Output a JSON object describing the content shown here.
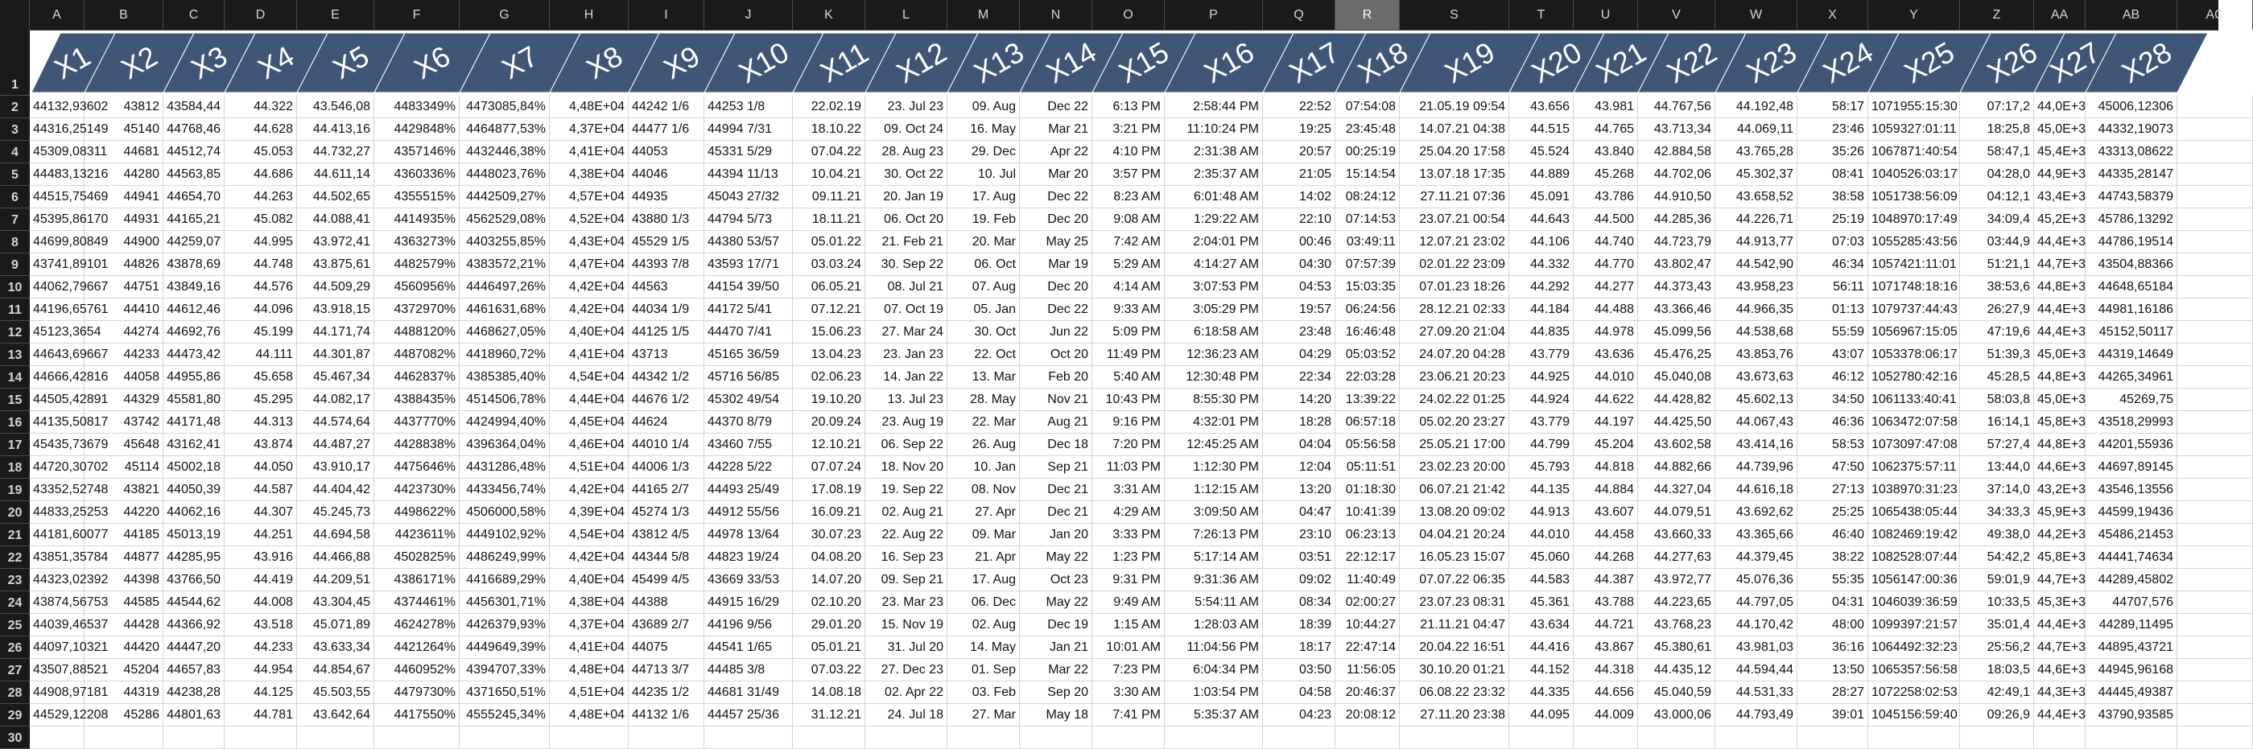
{
  "columns": [
    "A",
    "B",
    "C",
    "D",
    "E",
    "F",
    "G",
    "H",
    "I",
    "J",
    "K",
    "L",
    "M",
    "N",
    "O",
    "P",
    "Q",
    "R",
    "S",
    "T",
    "U",
    "V",
    "W",
    "X",
    "Y",
    "Z",
    "AA",
    "AB",
    "AC"
  ],
  "selected_column": "R",
  "row_numbers": [
    "1",
    "2",
    "3",
    "4",
    "5",
    "6",
    "7",
    "8",
    "9",
    "10",
    "11",
    "12",
    "13",
    "14",
    "15",
    "16",
    "17",
    "18",
    "19",
    "20",
    "21",
    "22",
    "23",
    "24",
    "25",
    "26",
    "27",
    "28",
    "29",
    "30"
  ],
  "header_labels": [
    "X1",
    "X2",
    "X3",
    "X4",
    "X5",
    "X6",
    "X7",
    "X8",
    "X9",
    "X10",
    "X11",
    "X12",
    "X13",
    "X14",
    "X15",
    "X16",
    "X17",
    "X18",
    "X19",
    "X20",
    "X21",
    "X22",
    "X23",
    "X24",
    "X25",
    "X26",
    "X27",
    "X28"
  ],
  "header_color": "#3f5677",
  "rows": [
    [
      "44132,93602",
      "43812",
      "43584,44",
      "44.322",
      "43.546,08",
      "4483349%",
      "4473085,84%",
      "4,48E+04",
      "44242 1/6",
      "44253 1/8",
      "22.02.19",
      "23. Jul 23",
      "09. Aug",
      "Dec 22",
      "6:13 PM",
      "2:58:44 PM",
      "22:52",
      "07:54:08",
      "21.05.19 09:54",
      "43.656",
      "43.981",
      "44.767,56",
      "44.192,48",
      "58:17",
      "1071955:15:30",
      "07:17,2",
      "44,0E+3",
      "45006,12306"
    ],
    [
      "44316,25149",
      "45140",
      "44768,46",
      "44.628",
      "44.413,16",
      "4429848%",
      "4464877,53%",
      "4,37E+04",
      "44477 1/6",
      "44994 7/31",
      "18.10.22",
      "09. Oct 24",
      "16. May",
      "Mar 21",
      "3:21 PM",
      "11:10:24 PM",
      "19:25",
      "23:45:48",
      "14.07.21 04:38",
      "44.515",
      "44.765",
      "43.713,34",
      "44.069,11",
      "23:46",
      "1059327:01:11",
      "18:25,8",
      "45,0E+3",
      "44332,19073"
    ],
    [
      "45309,08311",
      "44681",
      "44512,74",
      "45.053",
      "44.732,27",
      "4357146%",
      "4432446,38%",
      "4,41E+04",
      "44053",
      "45331 5/29",
      "07.04.22",
      "28. Aug 23",
      "29. Dec",
      "Apr 22",
      "4:10 PM",
      "2:31:38 AM",
      "20:57",
      "00:25:19",
      "25.04.20 17:58",
      "45.524",
      "43.840",
      "42.884,58",
      "43.765,28",
      "35:26",
      "1067871:40:54",
      "58:47,1",
      "45,4E+3",
      "43313,08622"
    ],
    [
      "44483,13216",
      "44280",
      "44563,85",
      "44.686",
      "44.611,14",
      "4360336%",
      "4448023,76%",
      "4,38E+04",
      "44046",
      "44394 11/13",
      "10.04.21",
      "30. Oct 22",
      "10. Jul",
      "Mar 20",
      "3:57 PM",
      "2:35:37 AM",
      "21:05",
      "15:14:54",
      "13.07.18 17:35",
      "44.889",
      "45.268",
      "44.702,06",
      "45.302,37",
      "08:41",
      "1040526:03:17",
      "04:28,0",
      "44,9E+3",
      "44335,28147"
    ],
    [
      "44515,75469",
      "44941",
      "44654,70",
      "44.263",
      "44.502,65",
      "4355515%",
      "4442509,27%",
      "4,57E+04",
      "44935",
      "45043 27/32",
      "09.11.21",
      "20. Jan 19",
      "17. Aug",
      "Dec 22",
      "8:23 AM",
      "6:01:48 AM",
      "14:02",
      "08:24:12",
      "27.11.21 07:36",
      "45.091",
      "43.786",
      "44.910,50",
      "43.658,52",
      "38:58",
      "1051738:56:09",
      "04:12,1",
      "43,4E+3",
      "44743,58379"
    ],
    [
      "45395,86170",
      "44931",
      "44165,21",
      "45.082",
      "44.088,41",
      "4414935%",
      "4562529,08%",
      "4,52E+04",
      "43880 1/3",
      "44794 5/73",
      "18.11.21",
      "06. Oct 20",
      "19. Feb",
      "Dec 20",
      "9:08 AM",
      "1:29:22 AM",
      "22:10",
      "07:14:53",
      "23.07.21 00:54",
      "44.643",
      "44.500",
      "44.285,36",
      "44.226,71",
      "25:19",
      "1048970:17:49",
      "34:09,4",
      "45,2E+3",
      "45786,13292"
    ],
    [
      "44699,80849",
      "44900",
      "44259,07",
      "44.995",
      "43.972,41",
      "4363273%",
      "4403255,85%",
      "4,43E+04",
      "45529 1/5",
      "44380 53/57",
      "05.01.22",
      "21. Feb 21",
      "20. Mar",
      "May 25",
      "7:42 AM",
      "2:04:01 PM",
      "00:46",
      "03:49:11",
      "12.07.21 23:02",
      "44.106",
      "44.740",
      "44.723,79",
      "44.913,77",
      "07:03",
      "1055285:43:56",
      "03:44,9",
      "44,4E+3",
      "44786,19514"
    ],
    [
      "43741,89101",
      "44826",
      "43878,69",
      "44.748",
      "43.875,61",
      "4482579%",
      "4383572,21%",
      "4,47E+04",
      "44393 7/8",
      "43593 17/71",
      "03.03.24",
      "30. Sep 22",
      "06. Oct",
      "Mar 19",
      "5:29 AM",
      "4:14:27 AM",
      "04:30",
      "07:57:39",
      "02.01.22 23:09",
      "44.332",
      "44.770",
      "43.802,47",
      "44.542,90",
      "46:34",
      "1057421:11:01",
      "51:21,1",
      "44,7E+3",
      "43504,88366"
    ],
    [
      "44062,79667",
      "44751",
      "43849,16",
      "44.576",
      "44.509,29",
      "4560956%",
      "4446497,26%",
      "4,42E+04",
      "44563",
      "44154 39/50",
      "06.05.21",
      "08. Jul 21",
      "07. Aug",
      "Dec 20",
      "4:14 AM",
      "3:07:53 PM",
      "04:53",
      "15:03:35",
      "07.01.23 18:26",
      "44.292",
      "44.277",
      "44.373,43",
      "43.958,23",
      "56:11",
      "1071748:18:16",
      "38:53,6",
      "44,8E+3",
      "44648,65184"
    ],
    [
      "44196,65761",
      "44410",
      "44612,46",
      "44.096",
      "43.918,15",
      "4372970%",
      "4461631,68%",
      "4,42E+04",
      "44034 1/9",
      "44172 5/41",
      "07.12.21",
      "07. Oct 19",
      "05. Jan",
      "Dec 22",
      "9:33 AM",
      "3:05:29 PM",
      "19:57",
      "06:24:56",
      "28.12.21 02:33",
      "44.184",
      "44.488",
      "43.366,46",
      "44.966,35",
      "01:13",
      "1079737:44:43",
      "26:27,9",
      "44,4E+3",
      "44981,16186"
    ],
    [
      "45123,3654",
      "44274",
      "44692,76",
      "45.199",
      "44.171,74",
      "4488120%",
      "4468627,05%",
      "4,40E+04",
      "44125 1/5",
      "44470 7/41",
      "15.06.23",
      "27. Mar 24",
      "30. Oct",
      "Jun 22",
      "5:09 PM",
      "6:18:58 AM",
      "23:48",
      "16:46:48",
      "27.09.20 21:04",
      "44.835",
      "44.978",
      "45.099,56",
      "44.538,68",
      "55:59",
      "1056967:15:05",
      "47:19,6",
      "44,4E+3",
      "45152,50117"
    ],
    [
      "44643,69667",
      "44233",
      "44473,42",
      "44.111",
      "44.301,87",
      "4487082%",
      "4418960,72%",
      "4,41E+04",
      "43713",
      "45165 36/59",
      "13.04.23",
      "23. Jan 23",
      "22. Oct",
      "Oct 20",
      "11:49 PM",
      "12:36:23 AM",
      "04:29",
      "05:03:52",
      "24.07.20 04:28",
      "43.779",
      "43.636",
      "45.476,25",
      "43.853,76",
      "43:07",
      "1053378:06:17",
      "51:39,3",
      "45,0E+3",
      "44319,14649"
    ],
    [
      "44666,42816",
      "44058",
      "44955,86",
      "45.658",
      "45.467,34",
      "4462837%",
      "4385385,40%",
      "4,54E+04",
      "44342 1/2",
      "45716 56/85",
      "02.06.23",
      "14. Jan 22",
      "13. Mar",
      "Feb 20",
      "5:40 AM",
      "12:30:48 PM",
      "22:34",
      "22:03:28",
      "23.06.21 20:23",
      "44.925",
      "44.010",
      "45.040,08",
      "43.673,63",
      "46:12",
      "1052780:42:16",
      "45:28,5",
      "44,8E+3",
      "44265,34961"
    ],
    [
      "44505,42891",
      "44329",
      "45581,80",
      "45.295",
      "44.082,17",
      "4388435%",
      "4514506,78%",
      "4,44E+04",
      "44676 1/2",
      "45302 49/54",
      "19.10.20",
      "13. Jul 23",
      "28. May",
      "Nov 21",
      "10:43 PM",
      "8:55:30 PM",
      "14:20",
      "13:39:22",
      "24.02.22 01:25",
      "44.924",
      "44.622",
      "44.428,82",
      "45.602,13",
      "34:50",
      "1061133:40:41",
      "58:03,8",
      "45,0E+3",
      "45269,75"
    ],
    [
      "44135,50817",
      "43742",
      "44171,48",
      "44.313",
      "44.574,64",
      "4437770%",
      "4424994,40%",
      "4,45E+04",
      "44624",
      "44370 8/79",
      "20.09.24",
      "23. Aug 19",
      "22. Mar",
      "Aug 21",
      "9:16 PM",
      "4:32:01 PM",
      "18:28",
      "06:57:18",
      "05.02.20 23:27",
      "43.779",
      "44.197",
      "44.425,50",
      "44.067,43",
      "46:36",
      "1063472:07:58",
      "16:14,1",
      "45,8E+3",
      "43518,29993"
    ],
    [
      "45435,73679",
      "45648",
      "43162,41",
      "43.874",
      "44.487,27",
      "4428838%",
      "4396364,04%",
      "4,46E+04",
      "44010 1/4",
      "43460 7/55",
      "12.10.21",
      "06. Sep 22",
      "26. Aug",
      "Dec 18",
      "7:20 PM",
      "12:45:25 AM",
      "04:04",
      "05:56:58",
      "25.05.21 17:00",
      "44.799",
      "45.204",
      "43.602,58",
      "43.414,16",
      "58:53",
      "1073097:47:08",
      "57:27,4",
      "44,8E+3",
      "44201,55936"
    ],
    [
      "44720,30702",
      "45114",
      "45002,18",
      "44.050",
      "43.910,17",
      "4475646%",
      "4431286,48%",
      "4,51E+04",
      "44006 1/3",
      "44228 5/22",
      "07.07.24",
      "18. Nov 20",
      "10. Jan",
      "Sep 21",
      "11:03 PM",
      "1:12:30 PM",
      "12:04",
      "05:11:51",
      "23.02.23 20:00",
      "45.793",
      "44.818",
      "44.882,66",
      "44.739,96",
      "47:50",
      "1062375:57:11",
      "13:44,0",
      "44,6E+3",
      "44697,89145"
    ],
    [
      "43352,52748",
      "43821",
      "44050,39",
      "44.587",
      "44.404,42",
      "4423730%",
      "4433456,74%",
      "4,42E+04",
      "44165 2/7",
      "44493 25/49",
      "17.08.19",
      "19. Sep 22",
      "08. Nov",
      "Dec 21",
      "3:31 AM",
      "1:12:15 AM",
      "13:20",
      "01:18:30",
      "06.07.21 21:42",
      "44.135",
      "44.884",
      "44.327,04",
      "44.616,18",
      "27:13",
      "1038970:31:23",
      "37:14,0",
      "43,2E+3",
      "43546,13556"
    ],
    [
      "44833,25253",
      "44220",
      "44062,16",
      "44.307",
      "45.245,73",
      "4498622%",
      "4506000,58%",
      "4,39E+04",
      "45274 1/3",
      "44912 55/56",
      "16.09.21",
      "02. Aug 21",
      "27. Apr",
      "Dec 21",
      "4:29 AM",
      "3:09:50 AM",
      "04:47",
      "10:41:39",
      "13.08.20 09:02",
      "44.913",
      "43.607",
      "44.079,51",
      "43.692,62",
      "25:25",
      "1065438:05:44",
      "34:33,3",
      "45,9E+3",
      "44599,19436"
    ],
    [
      "44181,60077",
      "44185",
      "45013,19",
      "44.251",
      "44.694,58",
      "4423611%",
      "4449102,92%",
      "4,54E+04",
      "43812 4/5",
      "44978 13/64",
      "30.07.23",
      "22. Aug 22",
      "09. Mar",
      "Jan 20",
      "3:33 PM",
      "7:26:13 PM",
      "23:10",
      "06:23:13",
      "04.04.21 20:24",
      "44.010",
      "44.458",
      "43.660,33",
      "43.365,66",
      "46:40",
      "1082469:19:42",
      "49:38,0",
      "44,2E+3",
      "45486,21453"
    ],
    [
      "43851,35784",
      "44877",
      "44285,95",
      "43.916",
      "44.466,88",
      "4502825%",
      "4486249,99%",
      "4,42E+04",
      "44344 5/8",
      "44823 19/24",
      "04.08.20",
      "16. Sep 23",
      "21. Apr",
      "May 22",
      "1:23 PM",
      "5:17:14 AM",
      "03:51",
      "22:12:17",
      "16.05.23 15:07",
      "45.060",
      "44.268",
      "44.277,63",
      "44.379,45",
      "38:22",
      "1082528:07:44",
      "54:42,2",
      "45,8E+3",
      "44441,74634"
    ],
    [
      "44323,02392",
      "44398",
      "43766,50",
      "44.419",
      "44.209,51",
      "4386171%",
      "4416689,29%",
      "4,40E+04",
      "45499 4/5",
      "43669 33/53",
      "14.07.20",
      "09. Sep 21",
      "17. Aug",
      "Oct 23",
      "9:31 PM",
      "9:31:36 AM",
      "09:02",
      "11:40:49",
      "07.07.22 06:35",
      "44.583",
      "44.387",
      "43.972,77",
      "45.076,36",
      "55:35",
      "1056147:00:36",
      "59:01,9",
      "44,7E+3",
      "44289,45802"
    ],
    [
      "43874,56753",
      "44585",
      "44544,62",
      "44.008",
      "43.304,45",
      "4374461%",
      "4456301,71%",
      "4,38E+04",
      "44388",
      "44915 16/29",
      "02.10.20",
      "23. Mar 23",
      "06. Dec",
      "May 22",
      "9:49 AM",
      "5:54:11 AM",
      "08:34",
      "02:00:27",
      "23.07.23 08:31",
      "45.361",
      "43.788",
      "44.223,65",
      "44.797,05",
      "04:31",
      "1046039:36:59",
      "10:33,5",
      "45,3E+3",
      "44707,576"
    ],
    [
      "44039,46537",
      "44428",
      "44366,92",
      "43.518",
      "45.071,89",
      "4624278%",
      "4426379,93%",
      "4,37E+04",
      "43689 2/7",
      "44196 9/56",
      "29.01.20",
      "15. Nov 19",
      "02. Aug",
      "Dec 19",
      "1:15 AM",
      "1:28:03 AM",
      "18:39",
      "10:44:27",
      "21.11.21 04:47",
      "43.634",
      "44.721",
      "43.768,23",
      "44.170,42",
      "48:00",
      "1099397:21:57",
      "35:01,4",
      "44,4E+3",
      "44289,11495"
    ],
    [
      "44097,10321",
      "44420",
      "44447,20",
      "44.233",
      "43.633,34",
      "4421264%",
      "4449649,39%",
      "4,41E+04",
      "44075",
      "44541 1/65",
      "05.01.21",
      "31. Jul 20",
      "14. May",
      "Jan 21",
      "10:01 AM",
      "11:04:56 PM",
      "18:17",
      "22:47:14",
      "20.04.22 16:51",
      "44.416",
      "43.867",
      "45.380,61",
      "43.981,03",
      "36:16",
      "1064492:32:23",
      "25:56,2",
      "44,7E+3",
      "44895,43721"
    ],
    [
      "43507,88521",
      "45204",
      "44657,83",
      "44.954",
      "44.854,67",
      "4460952%",
      "4394707,33%",
      "4,48E+04",
      "44713 3/7",
      "44485 3/8",
      "07.03.22",
      "27. Dec 23",
      "01. Sep",
      "Mar 22",
      "7:23 PM",
      "6:04:34 PM",
      "03:50",
      "11:56:05",
      "30.10.20 01:21",
      "44.152",
      "44.318",
      "44.435,12",
      "44.594,44",
      "13:50",
      "1065357:56:58",
      "18:03,5",
      "44,6E+3",
      "44945,96168"
    ],
    [
      "44908,97181",
      "44319",
      "44238,28",
      "44.125",
      "45.503,55",
      "4479730%",
      "4371650,51%",
      "4,51E+04",
      "44235 1/2",
      "44681 31/49",
      "14.08.18",
      "02. Apr 22",
      "03. Feb",
      "Sep 20",
      "3:30 AM",
      "1:03:54 PM",
      "04:58",
      "20:46:37",
      "06.08.22 23:32",
      "44.335",
      "44.656",
      "45.040,59",
      "44.531,33",
      "28:27",
      "1072258:02:53",
      "42:49,1",
      "44,3E+3",
      "44445,49387"
    ],
    [
      "44529,12208",
      "45286",
      "44801,63",
      "44.781",
      "43.642,64",
      "4417550%",
      "4555245,34%",
      "4,48E+04",
      "44132 1/6",
      "44457 25/36",
      "31.12.21",
      "24. Jul 18",
      "27. Mar",
      "May 18",
      "7:41 PM",
      "5:35:37 AM",
      "04:23",
      "20:08:12",
      "27.11.20 23:38",
      "44.095",
      "44.009",
      "43.000,06",
      "44.793,49",
      "39:01",
      "1045156:59:40",
      "09:26,9",
      "44,4E+3",
      "43790,93585"
    ]
  ]
}
